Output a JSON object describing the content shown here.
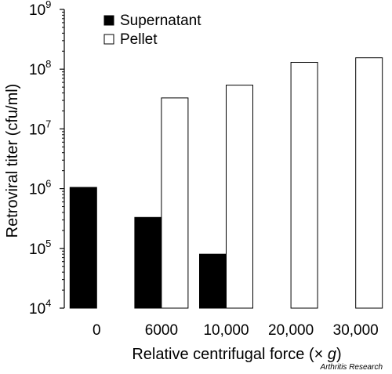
{
  "chart_data": {
    "type": "bar",
    "xlabel_main": "Relative centrifugal force (× ",
    "xlabel_italic": "g",
    "xlabel_end": ")",
    "ylabel": "Retroviral titer (cfu/ml)",
    "yscale": "log",
    "ylim": [
      10000,
      1000000000
    ],
    "y_tick_base": "10",
    "y_tick_exponents": [
      "4",
      "5",
      "6",
      "7",
      "8",
      "9"
    ],
    "categories": [
      "0",
      "6000",
      "10,000",
      "20,000",
      "30,000"
    ],
    "legend_position": "top-left",
    "grid": false,
    "series": [
      {
        "name": "Supernatant",
        "fill": "#000000",
        "values": [
          1050000,
          330000,
          80000,
          null,
          null
        ]
      },
      {
        "name": "Pellet",
        "fill": "#ffffff",
        "values": [
          null,
          33000000,
          54000000,
          130000000,
          155000000
        ]
      }
    ]
  },
  "credit": "Arthritis Research"
}
